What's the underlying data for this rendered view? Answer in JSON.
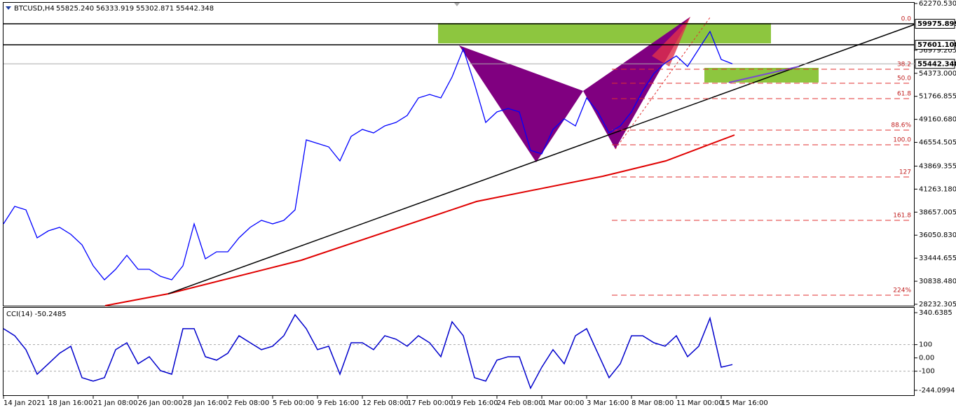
{
  "header": {
    "symbol": "BTCUSD,H4",
    "ohlc": [
      "55825.240",
      "56333.919",
      "55302.871",
      "55442.348"
    ]
  },
  "price_axis": {
    "ticks": [
      {
        "value": 62270.53,
        "label": "62270.530"
      },
      {
        "value": 56979.205,
        "label": "56979.205"
      },
      {
        "value": 54373,
        "label": "54373.000"
      },
      {
        "value": 51766.855,
        "label": "51766.855"
      },
      {
        "value": 49160.68,
        "label": "49160.680"
      },
      {
        "value": 46554.505,
        "label": "46554.505"
      },
      {
        "value": 43869.355,
        "label": "43869.355"
      },
      {
        "value": 41263.18,
        "label": "41263.180"
      },
      {
        "value": 38657.005,
        "label": "38657.005"
      },
      {
        "value": 36050.83,
        "label": "36050.830"
      },
      {
        "value": 33444.655,
        "label": "33444.655"
      },
      {
        "value": 30838.48,
        "label": "30838.480"
      },
      {
        "value": 28232.305,
        "label": "28232.305"
      }
    ],
    "levels": [
      {
        "value": 59975.899,
        "label": "59975.899"
      },
      {
        "value": 57601.108,
        "label": "57601.108"
      },
      {
        "value": 55442.348,
        "label": "55442.348"
      }
    ]
  },
  "price": {
    "values": [
      37335,
      39314,
      38918,
      35752,
      36543,
      36939,
      36148,
      34960,
      32585,
      31002,
      32190,
      33773,
      32190,
      32190,
      31398,
      31002,
      32585,
      37335,
      33377,
      34169,
      34169,
      35752,
      36939,
      37731,
      37335,
      37731,
      38918,
      46834,
      46439,
      46043,
      44460,
      47230,
      48022,
      47626,
      48418,
      48813,
      49605,
      51584,
      51980,
      51584,
      53959,
      57125,
      53167,
      48813,
      50001,
      50397,
      50001,
      45647,
      45251,
      48022,
      49209,
      48418,
      51584,
      50001,
      47626,
      48418,
      50001,
      52376,
      54355,
      55542,
      56334,
      55147,
      57125,
      59104,
      55938,
      55442.348
    ]
  },
  "fib": [
    {
      "label": "0.0",
      "value": 59975.899
    },
    {
      "label": "38.2",
      "value": 54829
    },
    {
      "label": "50.0",
      "value": 53246
    },
    {
      "label": "61.8",
      "value": 51505
    },
    {
      "label": "88.6%",
      "value": 47943
    },
    {
      "label": "100.0",
      "value": 46280
    },
    {
      "label": "127",
      "value": 42639
    },
    {
      "label": "161.8",
      "value": 37731
    },
    {
      "label": "224%",
      "value": 29260
    }
  ],
  "cci": {
    "label": "CCI(14) -50.2485",
    "ticks": [
      {
        "value": 340.6385,
        "label": "340.6385"
      },
      100,
      {
        "value": 0,
        "label": "0.00"
      },
      -100,
      {
        "value": -244.0994,
        "label": "-244.0994"
      }
    ],
    "values": [
      220,
      167,
      62,
      -123,
      -44,
      35,
      88,
      -149,
      -175,
      -149,
      62,
      114,
      -44,
      9,
      -96,
      -123,
      220,
      220,
      9,
      -17,
      35,
      167,
      114,
      62,
      88,
      167,
      325,
      220,
      62,
      88,
      -123,
      114,
      114,
      62,
      167,
      141,
      88,
      167,
      114,
      9,
      272,
      167,
      -149,
      -175,
      -17,
      9,
      9,
      -228,
      -70,
      62,
      -44,
      167,
      220,
      35,
      -149,
      -44,
      167,
      167,
      114,
      88,
      167,
      9,
      88,
      299,
      -70,
      -50.2485
    ]
  },
  "dates": [
    "14 Jan 2021",
    "18 Jan 16:00",
    "21 Jan 08:00",
    "26 Jan 00:00",
    "28 Jan 16:00",
    "2 Feb 08:00",
    "5 Feb 00:00",
    "9 Feb 16:00",
    "12 Feb 08:00",
    "17 Feb 00:00",
    "19 Feb 16:00",
    "24 Feb 08:00",
    "1 Mar 00:00",
    "3 Mar 16:00",
    "8 Mar 08:00",
    "11 Mar 00:00",
    "15 Mar 16:00"
  ]
}
